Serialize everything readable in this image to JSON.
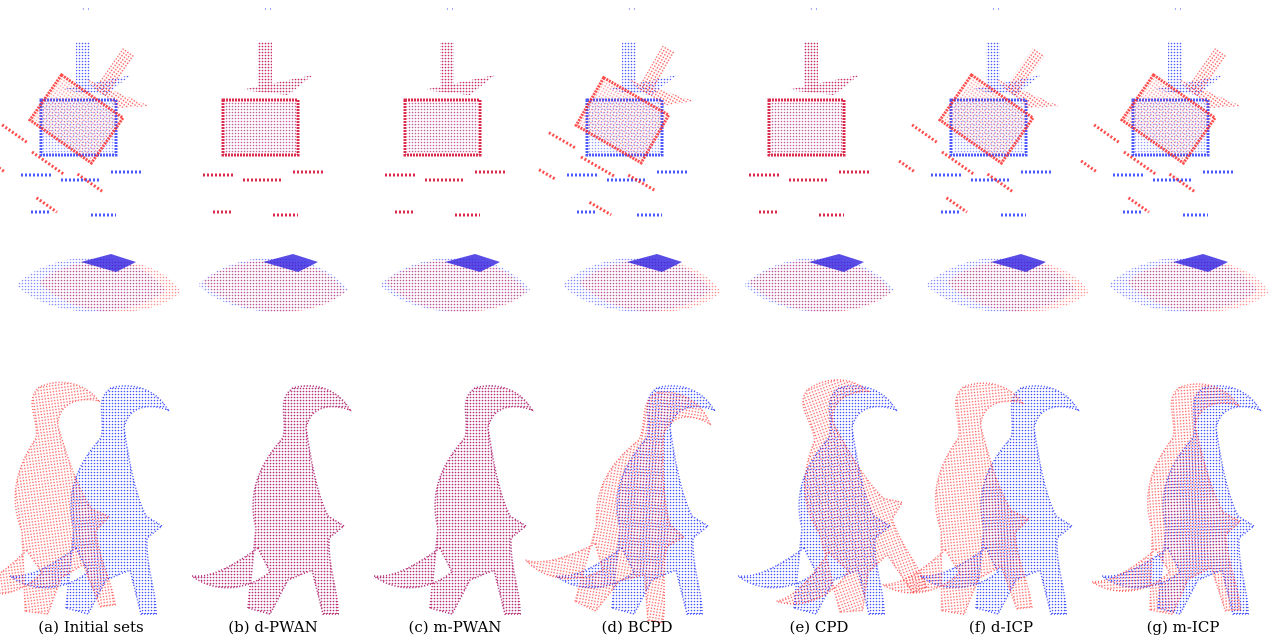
{
  "captions": [
    "(a) Initial sets",
    "(b) d-PWAN",
    "(c) m-PWAN",
    "(d) BCPD",
    "(e) CPD",
    "(f) d-ICP",
    "(g) m-ICP"
  ]
}
